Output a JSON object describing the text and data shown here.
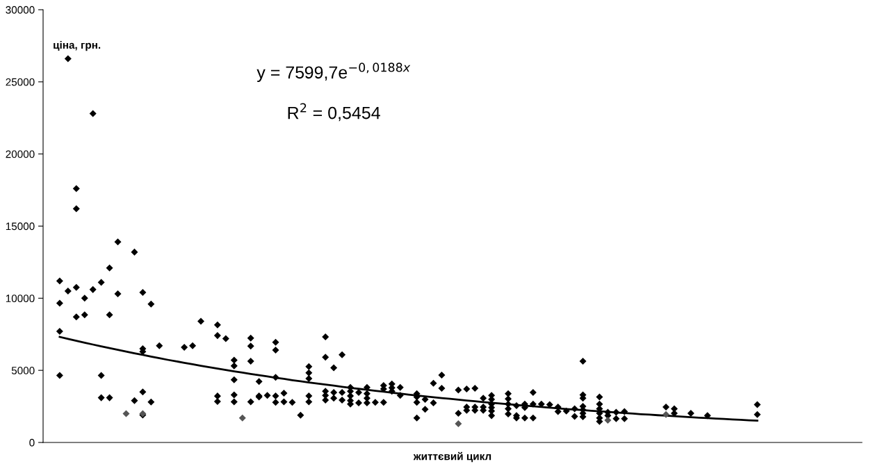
{
  "chart_data": {
    "type": "scatter",
    "ylabel": "ціна, грн.",
    "xlabel": "життєвий цикл",
    "annotations": [
      "y = 7599,7e$^{−0,0188x}$",
      "R$^{2}$ = 0,5454"
    ],
    "categories": [
      null,
      null,
      null,
      null,
      null,
      null,
      null,
      null,
      null,
      null,
      null,
      null,
      null,
      null,
      null,
      null,
      null,
      null,
      null,
      null,
      null,
      null,
      null,
      null,
      null,
      null,
      null,
      null,
      null,
      null,
      null,
      null,
      null,
      null,
      null,
      null,
      null,
      null,
      null,
      null,
      null,
      null,
      null,
      null,
      null,
      null,
      null,
      null,
      null,
      null,
      null,
      null,
      null,
      null,
      null,
      null,
      null,
      null,
      null,
      null,
      null,
      null,
      null,
      null,
      null,
      null,
      null,
      null,
      null,
      null,
      null,
      null,
      null,
      null,
      null,
      null,
      null,
      null,
      null,
      null,
      null,
      null,
      null,
      null,
      null,
      null,
      null,
      null,
      null,
      null,
      null,
      null,
      null,
      null,
      null,
      null,
      null,
      null,
      null
    ],
    "ylim": [
      0,
      30000
    ],
    "yticks": [
      0,
      5000,
      10000,
      15000,
      20000,
      25000,
      30000
    ],
    "grid": false,
    "legend": false,
    "marker": "diamond",
    "series": [
      {
        "color": "#000000",
        "values": [
          null,
          null,
          11200,
          26600,
          17600,
          10000,
          22800,
          11100,
          12100,
          13900,
          null,
          13200,
          10400,
          9600,
          6700,
          null,
          null,
          6600,
          6700,
          8400,
          null,
          8150,
          7200,
          5710,
          null,
          7240,
          4220,
          3260,
          6950,
          3420,
          2780,
          1890,
          5260,
          null,
          7320,
          5180,
          6080,
          3820,
          3470,
          3820,
          2780,
          3950,
          4060,
          3820,
          null,
          3380,
          2990,
          4110,
          4670,
          null,
          3630,
          3710,
          3760,
          3070,
          3260,
          null,
          3380,
          2550,
          2660,
          3470,
          2660,
          2620,
          2460,
          2180,
          2340,
          5630,
          null,
          3150,
          2100,
          2100,
          2140,
          null,
          null,
          null,
          null,
          2460,
          2340,
          null,
          2020,
          null,
          1860,
          null,
          null,
          null,
          null,
          null,
          2620,
          null,
          null,
          null,
          null,
          null,
          null,
          null,
          null,
          null,
          null,
          null,
          null
        ]
      },
      {
        "color": "#000000",
        "values": [
          null,
          null,
          9650,
          10500,
          16200,
          8850,
          10600,
          4650,
          8850,
          10300,
          null,
          2900,
          6500,
          2800,
          null,
          null,
          null,
          null,
          null,
          null,
          null,
          7410,
          null,
          5310,
          null,
          6680,
          3230,
          null,
          6400,
          2820,
          null,
          null,
          4830,
          null,
          5910,
          3470,
          3470,
          3550,
          2740,
          3380,
          null,
          3710,
          3790,
          3260,
          null,
          3150,
          2300,
          2740,
          3760,
          null,
          2020,
          2460,
          2460,
          2460,
          2990,
          null,
          3020,
          1860,
          2420,
          2660,
          null,
          null,
          2140,
          null,
          1810,
          3300,
          null,
          2660,
          1860,
          1650,
          1650,
          null,
          null,
          null,
          null,
          null,
          2020,
          null,
          null,
          null,
          null,
          null,
          null,
          null,
          null,
          null,
          1940,
          null,
          null,
          null,
          null,
          null,
          null,
          null,
          null,
          null,
          null,
          null,
          null
        ]
      },
      {
        "color": "#000000",
        "values": [
          null,
          null,
          7700,
          null,
          10750,
          null,
          null,
          3100,
          3100,
          null,
          null,
          null,
          6300,
          null,
          null,
          null,
          null,
          null,
          null,
          null,
          null,
          3220,
          null,
          4350,
          null,
          5630,
          3150,
          null,
          4510,
          null,
          null,
          null,
          4430,
          null,
          3550,
          3070,
          2940,
          3230,
          null,
          3070,
          null,
          2780,
          3550,
          null,
          null,
          2780,
          null,
          null,
          null,
          null,
          null,
          2230,
          2230,
          2230,
          2660,
          null,
          2660,
          1700,
          1700,
          1700,
          null,
          null,
          null,
          null,
          null,
          3070,
          null,
          2340,
          null,
          null,
          null,
          null,
          null,
          null,
          null,
          null,
          null,
          null,
          null,
          null,
          null,
          null,
          null,
          null,
          null,
          null,
          null,
          null,
          null,
          null,
          null,
          null,
          null,
          null,
          null,
          null,
          null,
          null,
          null
        ]
      },
      {
        "color": "#000000",
        "values": [
          null,
          null,
          4650,
          null,
          8700,
          null,
          null,
          null,
          null,
          null,
          null,
          null,
          3500,
          null,
          null,
          null,
          null,
          null,
          null,
          null,
          null,
          2840,
          null,
          3300,
          null,
          2820,
          null,
          null,
          3230,
          null,
          null,
          null,
          3230,
          null,
          3260,
          null,
          null,
          2900,
          null,
          2740,
          null,
          null,
          null,
          null,
          null,
          1700,
          null,
          null,
          null,
          null,
          null,
          null,
          null,
          null,
          2420,
          null,
          2340,
          null,
          null,
          null,
          null,
          null,
          null,
          null,
          null,
          2500,
          null,
          2020,
          null,
          null,
          null,
          null,
          null,
          null,
          null,
          null,
          null,
          null,
          null,
          null,
          null,
          null,
          null,
          null,
          null,
          null,
          null,
          null,
          null,
          null,
          null,
          null,
          null,
          null,
          null,
          null,
          null,
          null,
          null
        ]
      },
      {
        "color": "#000000",
        "values": [
          null,
          null,
          null,
          null,
          null,
          null,
          null,
          null,
          null,
          null,
          null,
          null,
          1900,
          null,
          null,
          null,
          null,
          null,
          null,
          null,
          null,
          null,
          null,
          2820,
          null,
          null,
          null,
          null,
          2780,
          null,
          null,
          null,
          2820,
          null,
          2940,
          null,
          null,
          2660,
          null,
          null,
          null,
          null,
          null,
          null,
          null,
          null,
          null,
          null,
          null,
          null,
          null,
          null,
          null,
          null,
          2180,
          null,
          1970,
          null,
          null,
          null,
          null,
          null,
          null,
          null,
          null,
          2260,
          null,
          1700,
          null,
          null,
          null,
          null,
          null,
          null,
          null,
          null,
          null,
          null,
          null,
          null,
          null,
          null,
          null,
          null,
          null,
          null,
          null,
          null,
          null,
          null,
          null,
          null,
          null,
          null,
          null,
          null,
          null,
          null,
          null
        ]
      },
      {
        "color": "#000000",
        "values": [
          null,
          null,
          null,
          null,
          null,
          null,
          null,
          null,
          null,
          null,
          null,
          null,
          null,
          null,
          null,
          null,
          null,
          null,
          null,
          null,
          null,
          null,
          null,
          null,
          null,
          null,
          null,
          null,
          null,
          null,
          null,
          null,
          null,
          null,
          null,
          null,
          null,
          null,
          null,
          null,
          null,
          null,
          null,
          null,
          null,
          null,
          null,
          null,
          null,
          null,
          null,
          null,
          null,
          null,
          1860,
          null,
          null,
          null,
          null,
          null,
          null,
          null,
          null,
          null,
          null,
          2020,
          null,
          1460,
          null,
          null,
          null,
          null,
          null,
          null,
          null,
          null,
          null,
          null,
          null,
          null,
          null,
          null,
          null,
          null,
          null,
          null,
          null,
          null,
          null,
          null,
          null,
          null,
          null,
          null,
          null,
          null,
          null,
          null,
          null
        ]
      },
      {
        "color": "#000000",
        "values": [
          null,
          null,
          null,
          null,
          null,
          null,
          null,
          null,
          null,
          null,
          null,
          null,
          null,
          null,
          null,
          null,
          null,
          null,
          null,
          null,
          null,
          null,
          null,
          null,
          null,
          null,
          null,
          null,
          null,
          null,
          null,
          null,
          null,
          null,
          null,
          null,
          null,
          null,
          null,
          null,
          null,
          null,
          null,
          null,
          null,
          null,
          null,
          null,
          null,
          null,
          null,
          null,
          null,
          null,
          null,
          null,
          null,
          null,
          null,
          null,
          null,
          null,
          null,
          null,
          null,
          1780,
          null,
          null,
          null,
          null,
          null,
          null,
          null,
          null,
          null,
          null,
          null,
          null,
          null,
          null,
          null,
          null,
          null,
          null,
          null,
          null,
          null,
          null,
          null,
          null,
          null,
          null,
          null,
          null,
          null,
          null,
          null,
          null,
          null
        ]
      },
      {
        "color": "#555555",
        "values": [
          null,
          null,
          null,
          null,
          null,
          null,
          null,
          null,
          null,
          null,
          2000,
          null,
          2000,
          null,
          null,
          null,
          null,
          null,
          null,
          null,
          null,
          null,
          null,
          null,
          1700,
          null,
          null,
          null,
          null,
          null,
          null,
          null,
          null,
          null,
          null,
          null,
          null,
          null,
          null,
          null,
          null,
          null,
          null,
          null,
          null,
          null,
          null,
          null,
          null,
          null,
          1300,
          null,
          null,
          null,
          null,
          null,
          null,
          null,
          null,
          null,
          null,
          null,
          null,
          null,
          null,
          null,
          null,
          null,
          1540,
          null,
          null,
          null,
          null,
          null,
          null,
          1940,
          null,
          null,
          null,
          null,
          null,
          null,
          null,
          null,
          null,
          null,
          null,
          null,
          null,
          null,
          null,
          null,
          null,
          null,
          null,
          null,
          null,
          null,
          null
        ]
      },
      {
        "type": "line",
        "color": "#000000",
        "marker": "none",
        "values": [
          null,
          null,
          7320,
          7180,
          7050,
          6920,
          6790,
          6660,
          6540,
          6420,
          6300,
          6180,
          6070,
          5950,
          5840,
          5730,
          5630,
          5520,
          5420,
          5320,
          5220,
          5120,
          5030,
          4930,
          4840,
          4750,
          4660,
          4580,
          4490,
          4410,
          4320,
          4240,
          4160,
          4090,
          4010,
          3940,
          3860,
          3790,
          3720,
          3650,
          3580,
          3520,
          3450,
          3390,
          3320,
          3260,
          3200,
          3140,
          3080,
          3030,
          2970,
          2910,
          2860,
          2800,
          2750,
          2700,
          2650,
          2600,
          2550,
          2510,
          2460,
          2410,
          2370,
          2320,
          2280,
          2240,
          2200,
          2160,
          2120,
          2080,
          2040,
          2000,
          1960,
          1930,
          1890,
          1860,
          1820,
          1790,
          1750,
          1720,
          1690,
          1660,
          1630,
          1600,
          1570,
          1540,
          1510,
          null,
          null,
          null,
          null,
          null,
          null,
          null,
          null,
          null,
          null,
          null,
          null
        ]
      }
    ]
  }
}
